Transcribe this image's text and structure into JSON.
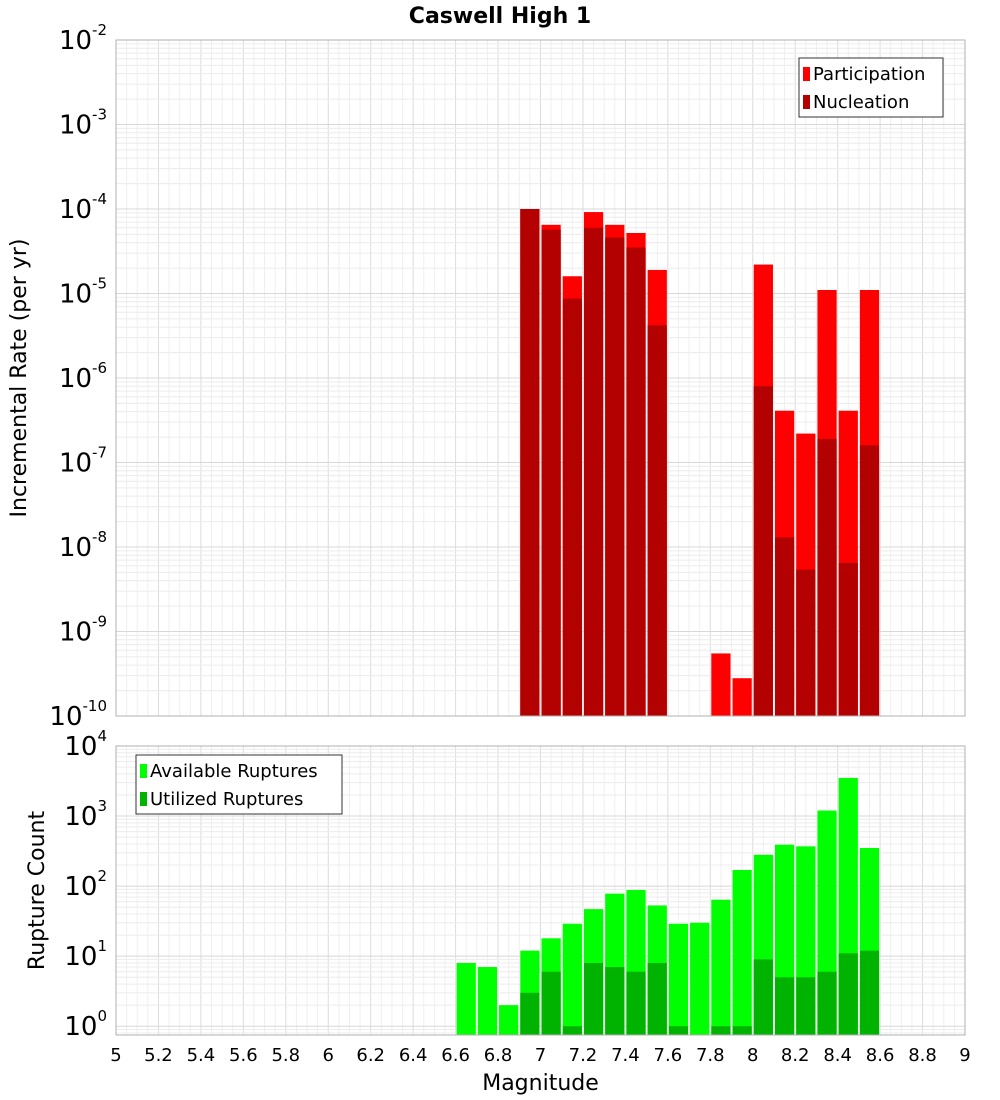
{
  "title": "Caswell High 1",
  "chart_data": [
    {
      "type": "bar",
      "title": "Caswell High 1",
      "xlabel": "",
      "ylabel": "Incremental Rate (per yr)",
      "yscale": "log",
      "ylim": [
        1e-10,
        0.01
      ],
      "xlim": [
        5,
        9
      ],
      "bin_width": 0.1,
      "grid": true,
      "legend_position": "top-right",
      "x": [
        6.95,
        7.05,
        7.15,
        7.25,
        7.35,
        7.45,
        7.55,
        7.85,
        7.95,
        8.05,
        8.15,
        8.25,
        8.35,
        8.45,
        8.55
      ],
      "series": [
        {
          "name": "Participation",
          "color": "#ff0000",
          "values": [
            0.0001,
            6.5e-05,
            1.6e-05,
            9.2e-05,
            6.5e-05,
            5.2e-05,
            1.9e-05,
            5.5e-10,
            2.8e-10,
            2.2e-05,
            4.1e-07,
            2.2e-07,
            1.1e-05,
            4.1e-07,
            1.1e-05
          ]
        },
        {
          "name": "Nucleation",
          "color": "#b30000",
          "values": [
            0.0001,
            5.7e-05,
            8.7e-06,
            6e-05,
            4.6e-05,
            3.5e-05,
            4.2e-06,
            null,
            null,
            8e-07,
            1.3e-08,
            5.4e-09,
            1.9e-07,
            6.5e-09,
            1.6e-07
          ]
        }
      ],
      "yticks": [
        {
          "base": "10",
          "exp": "-10"
        },
        {
          "base": "10",
          "exp": "-9"
        },
        {
          "base": "10",
          "exp": "-8"
        },
        {
          "base": "10",
          "exp": "-7"
        },
        {
          "base": "10",
          "exp": "-6"
        },
        {
          "base": "10",
          "exp": "-5"
        },
        {
          "base": "10",
          "exp": "-4"
        },
        {
          "base": "10",
          "exp": "-3"
        },
        {
          "base": "10",
          "exp": "-2"
        }
      ]
    },
    {
      "type": "bar",
      "title": "",
      "xlabel": "Magnitude",
      "ylabel": "Rupture Count",
      "yscale": "log",
      "ylim": [
        0.75,
        10000
      ],
      "xlim": [
        5,
        9
      ],
      "bin_width": 0.1,
      "grid": true,
      "legend_position": "top-left",
      "x": [
        6.65,
        6.75,
        6.85,
        6.95,
        7.05,
        7.15,
        7.25,
        7.35,
        7.45,
        7.55,
        7.65,
        7.75,
        7.85,
        7.95,
        8.05,
        8.15,
        8.25,
        8.35,
        8.45,
        8.55
      ],
      "series": [
        {
          "name": "Available Ruptures",
          "color": "#00ff00",
          "values": [
            8,
            7,
            2,
            12,
            18,
            29,
            47,
            78,
            88,
            53,
            29,
            30,
            64,
            170,
            280,
            390,
            370,
            1200,
            3500,
            350
          ]
        },
        {
          "name": "Utilized Ruptures",
          "color": "#00b300",
          "values": [
            null,
            null,
            null,
            3,
            6,
            1,
            8,
            7,
            6,
            8,
            1,
            null,
            1,
            1,
            9,
            5,
            5,
            6,
            11,
            12
          ]
        }
      ],
      "yticks": [
        {
          "base": "10",
          "exp": "0"
        },
        {
          "base": "10",
          "exp": "1"
        },
        {
          "base": "10",
          "exp": "2"
        },
        {
          "base": "10",
          "exp": "3"
        },
        {
          "base": "10",
          "exp": "4"
        }
      ],
      "xtick_labels": [
        "5",
        "5.2",
        "5.4",
        "5.6",
        "5.8",
        "6",
        "6.2",
        "6.4",
        "6.6",
        "6.8",
        "7",
        "7.2",
        "7.4",
        "7.6",
        "7.8",
        "8",
        "8.2",
        "8.4",
        "8.6",
        "8.8",
        "9"
      ]
    }
  ]
}
